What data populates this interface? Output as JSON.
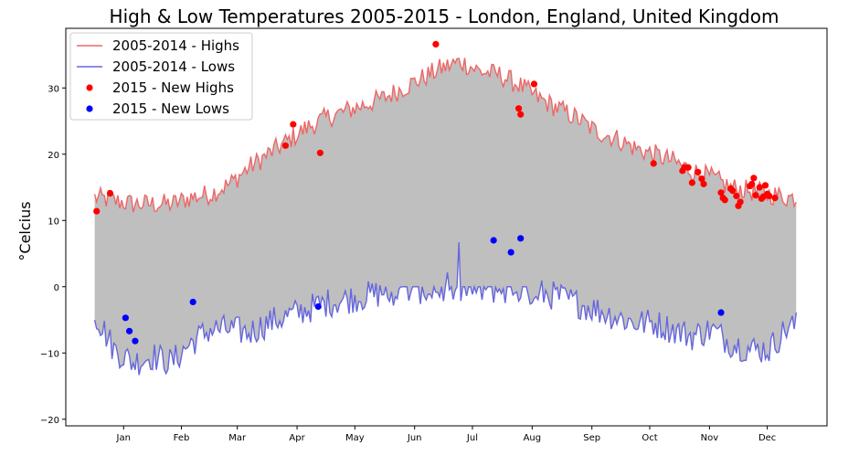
{
  "chart_data": {
    "type": "line",
    "title": "High & Low Temperatures 2005-2015 - London, England, United Kingdom",
    "ylabel": "°Celcius",
    "xlabel": "",
    "ylim": [
      -21,
      39
    ],
    "yticks": [
      -20,
      -10,
      0,
      10,
      20,
      30
    ],
    "xlim_day": [
      -15,
      380
    ],
    "month_ticks": [
      {
        "label": "Jan",
        "day": 15
      },
      {
        "label": "Feb",
        "day": 45
      },
      {
        "label": "Mar",
        "day": 74
      },
      {
        "label": "Apr",
        "day": 105
      },
      {
        "label": "May",
        "day": 135
      },
      {
        "label": "Jun",
        "day": 166
      },
      {
        "label": "Jul",
        "day": 196
      },
      {
        "label": "Aug",
        "day": 227
      },
      {
        "label": "Sep",
        "day": 258
      },
      {
        "label": "Oct",
        "day": 288
      },
      {
        "label": "Nov",
        "day": 319
      },
      {
        "label": "Dec",
        "day": 349
      }
    ],
    "highs_knots": [
      [
        0,
        13
      ],
      [
        10,
        12.5
      ],
      [
        20,
        12
      ],
      [
        30,
        12
      ],
      [
        40,
        12
      ],
      [
        50,
        13
      ],
      [
        60,
        13.5
      ],
      [
        70,
        15
      ],
      [
        80,
        17.5
      ],
      [
        90,
        19.5
      ],
      [
        100,
        21.5
      ],
      [
        110,
        23.5
      ],
      [
        120,
        25
      ],
      [
        130,
        26
      ],
      [
        140,
        27
      ],
      [
        150,
        28
      ],
      [
        160,
        29.5
      ],
      [
        170,
        31
      ],
      [
        180,
        32.5
      ],
      [
        190,
        33.5
      ],
      [
        200,
        32
      ],
      [
        210,
        31.5
      ],
      [
        220,
        30
      ],
      [
        230,
        28
      ],
      [
        240,
        26.5
      ],
      [
        250,
        25
      ],
      [
        260,
        23
      ],
      [
        270,
        22
      ],
      [
        280,
        20.5
      ],
      [
        290,
        19.5
      ],
      [
        300,
        18.5
      ],
      [
        310,
        17
      ],
      [
        320,
        16
      ],
      [
        330,
        14.5
      ],
      [
        340,
        14
      ],
      [
        350,
        13.5
      ],
      [
        360,
        13
      ]
    ],
    "lows_knots": [
      [
        0,
        -3.5
      ],
      [
        10,
        -9
      ],
      [
        20,
        -11
      ],
      [
        30,
        -10
      ],
      [
        40,
        -11
      ],
      [
        50,
        -8
      ],
      [
        60,
        -6
      ],
      [
        70,
        -6
      ],
      [
        80,
        -6.5
      ],
      [
        90,
        -5
      ],
      [
        100,
        -4
      ],
      [
        110,
        -3
      ],
      [
        120,
        -2
      ],
      [
        130,
        -1.5
      ],
      [
        140,
        -1
      ],
      [
        150,
        -0.5
      ],
      [
        160,
        0
      ],
      [
        170,
        0
      ],
      [
        180,
        0
      ],
      [
        190,
        0
      ],
      [
        200,
        0
      ],
      [
        210,
        0
      ],
      [
        220,
        0
      ],
      [
        230,
        -0.5
      ],
      [
        240,
        -1
      ],
      [
        250,
        -2
      ],
      [
        260,
        -3
      ],
      [
        270,
        -4
      ],
      [
        280,
        -5
      ],
      [
        290,
        -5
      ],
      [
        300,
        -6
      ],
      [
        310,
        -7
      ],
      [
        320,
        -6
      ],
      [
        330,
        -8
      ],
      [
        340,
        -9
      ],
      [
        350,
        -9
      ],
      [
        360,
        -5.5
      ]
    ],
    "new_highs_2015": [
      [
        1,
        11.4
      ],
      [
        8,
        14.1
      ],
      [
        99,
        21.3
      ],
      [
        103,
        24.5
      ],
      [
        117,
        20.2
      ],
      [
        177,
        36.6
      ],
      [
        220,
        26.9
      ],
      [
        221,
        26.0
      ],
      [
        228,
        30.6
      ],
      [
        290,
        18.6
      ],
      [
        305,
        17.5
      ],
      [
        306,
        18.0
      ],
      [
        308,
        18.0
      ],
      [
        310,
        15.7
      ],
      [
        313,
        17.3
      ],
      [
        315,
        16.3
      ],
      [
        316,
        15.5
      ],
      [
        325,
        14.2
      ],
      [
        326,
        13.4
      ],
      [
        327,
        13.1
      ],
      [
        330,
        14.8
      ],
      [
        331,
        14.5
      ],
      [
        333,
        13.7
      ],
      [
        334,
        12.2
      ],
      [
        335,
        12.8
      ],
      [
        340,
        15.2
      ],
      [
        341,
        15.5
      ],
      [
        342,
        16.4
      ],
      [
        343,
        13.8
      ],
      [
        345,
        15.0
      ],
      [
        346,
        13.3
      ],
      [
        347,
        13.6
      ],
      [
        348,
        15.3
      ],
      [
        349,
        14.0
      ],
      [
        350,
        13.7
      ],
      [
        353,
        13.4
      ]
    ],
    "new_lows_2015": [
      [
        16,
        -4.7
      ],
      [
        18,
        -6.7
      ],
      [
        21,
        -8.2
      ],
      [
        51,
        -2.3
      ],
      [
        116,
        -3.0
      ],
      [
        207,
        7.0
      ],
      [
        216,
        5.2
      ],
      [
        221,
        7.3
      ],
      [
        325,
        -3.9
      ]
    ],
    "legend": {
      "position": "top-left",
      "entries": [
        {
          "label": "2005-2014 - Highs",
          "color": "#ee6666",
          "marker": "line"
        },
        {
          "label": "2005-2014 - Lows",
          "color": "#6666dd",
          "marker": "line"
        },
        {
          "label": "2015 - New Highs",
          "color": "#ff0000",
          "marker": "dot"
        },
        {
          "label": "2015 - New Lows",
          "color": "#0000ff",
          "marker": "dot"
        }
      ]
    },
    "colors": {
      "fill": "#bfbfbf",
      "highs_line": "#ee6666",
      "lows_line": "#6666dd",
      "new_highs": "#ff0000",
      "new_lows": "#0000ff"
    }
  }
}
